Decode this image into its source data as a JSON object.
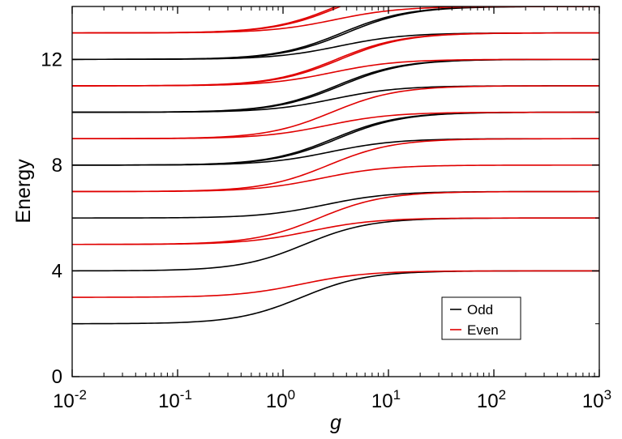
{
  "chart_data": {
    "type": "line",
    "title": "",
    "xlabel": "g",
    "ylabel": "Energy",
    "xscale": "log",
    "xlim": [
      0.01,
      1000
    ],
    "ylim": [
      0,
      14
    ],
    "x_ticks": [
      {
        "value": 0.01,
        "base": "10",
        "exp": "-2"
      },
      {
        "value": 0.1,
        "base": "10",
        "exp": "-1"
      },
      {
        "value": 1,
        "base": "10",
        "exp": "0"
      },
      {
        "value": 10,
        "base": "10",
        "exp": "1"
      },
      {
        "value": 100,
        "base": "10",
        "exp": "2"
      },
      {
        "value": 1000,
        "base": "10",
        "exp": "3"
      }
    ],
    "y_ticks": [
      "0",
      "4",
      "8",
      "12"
    ],
    "grid": false,
    "legend_position": "bottom-right",
    "colors": {
      "odd": "#000000",
      "even": "#e00000"
    },
    "series": [
      {
        "name": "Odd",
        "color": "#000000",
        "curves": [
          {
            "from": 2,
            "to": 4,
            "center": 1.5
          },
          {
            "from": 4,
            "to": 6,
            "center": 1.6
          },
          {
            "from": 6,
            "to": 7,
            "center": 2.5
          },
          {
            "from": 8,
            "to": 9,
            "center": 2.8
          },
          {
            "from": 8,
            "to": 10,
            "center": 3.0
          },
          {
            "from": 8,
            "to": 10,
            "center": 3.3
          },
          {
            "from": 10,
            "to": 11,
            "center": 3.0
          },
          {
            "from": 10,
            "to": 12,
            "center": 3.2
          },
          {
            "from": 10,
            "to": 12,
            "center": 3.5
          },
          {
            "from": 12,
            "to": 13,
            "center": 3.4
          },
          {
            "from": 12,
            "to": 14,
            "center": 3.6
          },
          {
            "from": 12,
            "to": 14,
            "center": 4.0
          }
        ]
      },
      {
        "name": "Even",
        "color": "#e00000",
        "curves": [
          {
            "from": 3,
            "to": 4,
            "center": 1.5
          },
          {
            "from": 5,
            "to": 6,
            "center": 1.8
          },
          {
            "from": 5,
            "to": 7,
            "center": 2.2
          },
          {
            "from": 7,
            "to": 8,
            "center": 2.3
          },
          {
            "from": 7,
            "to": 9,
            "center": 2.7
          },
          {
            "from": 9,
            "to": 10,
            "center": 2.6
          },
          {
            "from": 9,
            "to": 11,
            "center": 2.9
          },
          {
            "from": 11,
            "to": 12,
            "center": 2.9
          },
          {
            "from": 11,
            "to": 13,
            "center": 3.2
          },
          {
            "from": 11,
            "to": 13,
            "center": 3.5
          },
          {
            "from": 13,
            "to": 14,
            "center": 3.1
          },
          {
            "from": 13,
            "to": 15,
            "center": 3.2
          },
          {
            "from": 13,
            "to": 15,
            "center": 3.5
          }
        ]
      }
    ]
  }
}
